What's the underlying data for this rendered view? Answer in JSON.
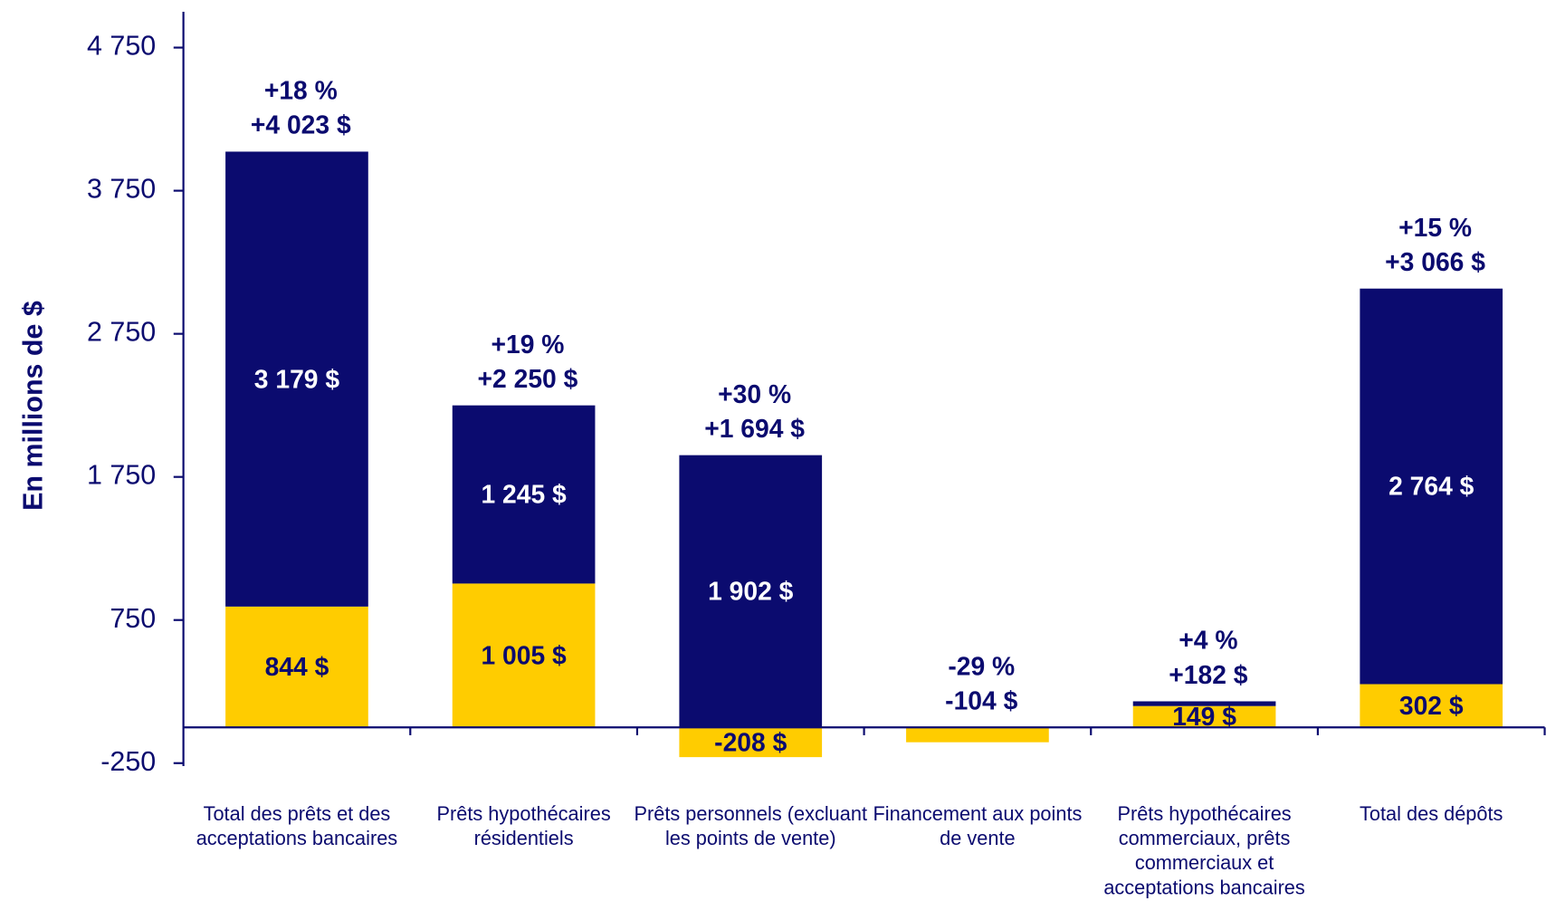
{
  "chart_data": {
    "type": "stacked_bar",
    "y_label": "En millions de $",
    "categories": [
      "Total des prêts et des acceptations bancaires",
      "Prêts hypothécaires résidentiels",
      "Prêts personnels (excluant les points de vente)",
      "Financement aux points de vente",
      "Prêts hypothécaires commerciaux, prêts commerciaux et acceptations bancaires",
      "Total des dépôts"
    ],
    "series": [
      {
        "color": "#ffcc00",
        "values": [
          844,
          1005,
          -208,
          -104,
          149,
          302
        ],
        "value_labels": [
          "844 $",
          "1 005 $",
          "-208 $",
          null,
          "149 $",
          "302 $"
        ]
      },
      {
        "color": "#0b0b6f",
        "values": [
          3179,
          1245,
          1902,
          null,
          33,
          2764
        ],
        "value_labels": [
          "3 179 $",
          "1 245 $",
          "1 902 $",
          null,
          null,
          "2 764 $"
        ]
      }
    ],
    "annotations": [
      [
        "+18 %",
        "+4 023 $"
      ],
      [
        "+19 %",
        "+2 250 $"
      ],
      [
        "+30 %",
        "+1 694 $"
      ],
      [
        "-29 %",
        "-104 $"
      ],
      [
        "+4 %",
        "+182 $"
      ],
      [
        "+15 %",
        "+3 066 $"
      ]
    ],
    "ylim": [
      -250,
      5000
    ],
    "yticks": [
      -250,
      750,
      {
        "value": 1750,
        "label": "1 750"
      },
      {
        "value": 2750,
        "label": "2 750"
      },
      {
        "value": 3750,
        "label": "3 750"
      },
      {
        "value": 4750,
        "label": "4 750"
      }
    ]
  }
}
